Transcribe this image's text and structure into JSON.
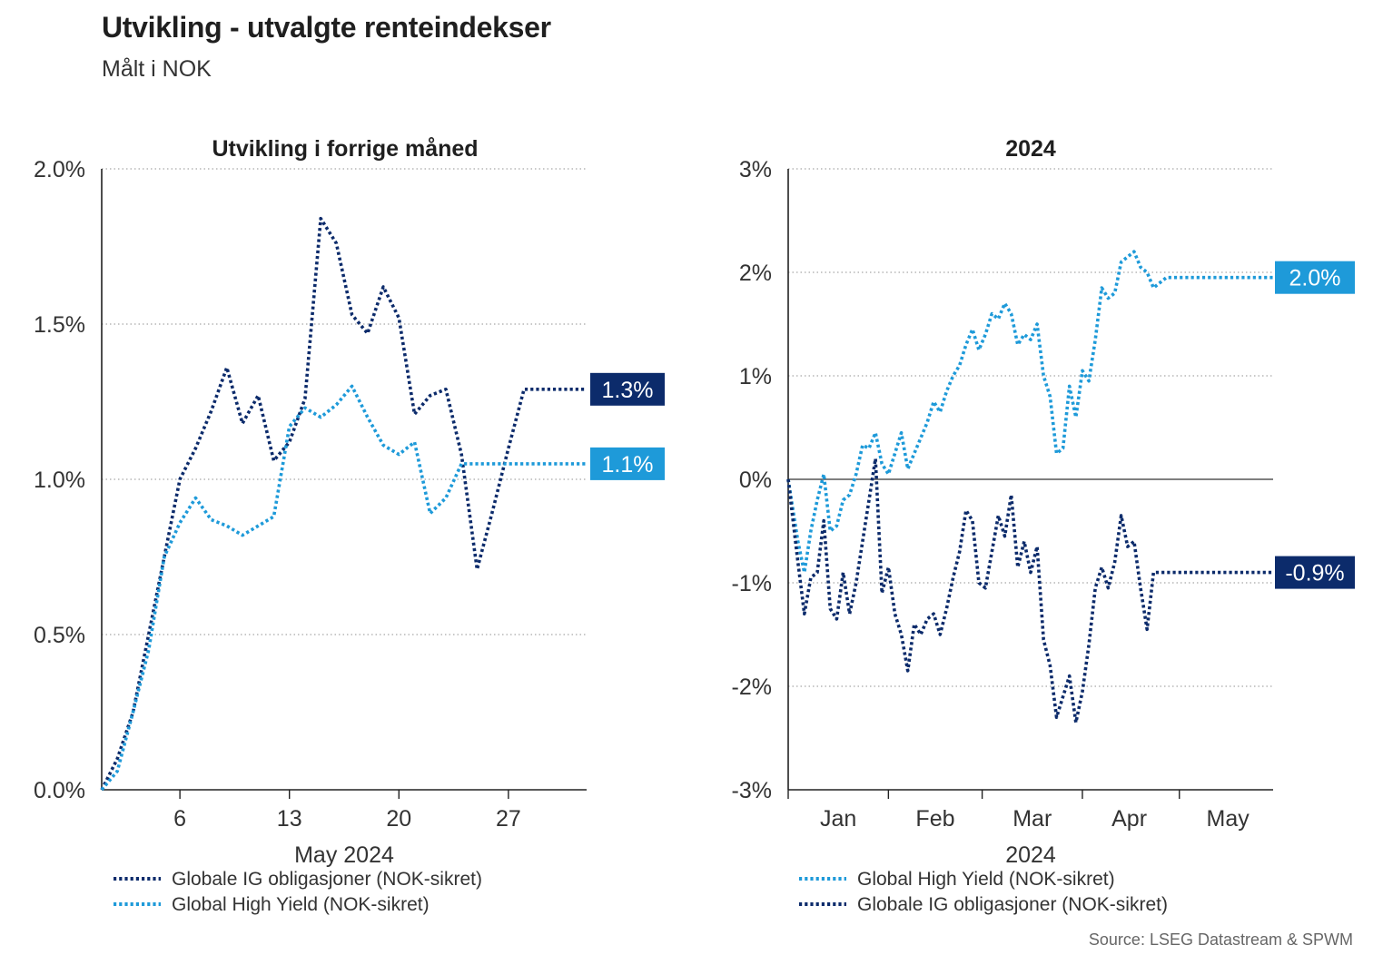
{
  "title": "Utvikling - utvalgte renteindekser",
  "subtitle": "Målt i NOK",
  "source": "Source: LSEG Datastream & SPWM",
  "colors": {
    "ig": "#0c2b6b",
    "hy": "#1e9ad9",
    "grid": "#a8a8a8",
    "axis": "#222222"
  },
  "chart_data": [
    {
      "type": "line",
      "title": "Utvikling i forrige måned",
      "xlabel": "May 2024",
      "ylabel": "",
      "xlim": [
        1,
        32
      ],
      "ylim": [
        0,
        2.0
      ],
      "yticks": [
        {
          "v": 0.0,
          "label": "0.0%"
        },
        {
          "v": 0.5,
          "label": "0.5%"
        },
        {
          "v": 1.0,
          "label": "1.0%"
        },
        {
          "v": 1.5,
          "label": "1.5%"
        },
        {
          "v": 2.0,
          "label": "2.0%"
        }
      ],
      "xticks": [
        {
          "v": 6,
          "label": "6"
        },
        {
          "v": 13,
          "label": "13"
        },
        {
          "v": 20,
          "label": "20"
        },
        {
          "v": 27,
          "label": "27"
        }
      ],
      "legend": [
        "Globale IG obligasjoner (NOK-sikret)",
        "Global High Yield (NOK-sikret)"
      ],
      "series": [
        {
          "name": "Globale IG obligasjoner (NOK-sikret)",
          "key": "ig",
          "end_label": "1.3%",
          "x": [
            1,
            2,
            3,
            4,
            5,
            6,
            7,
            8,
            9,
            10,
            11,
            12,
            13,
            14,
            15,
            16,
            17,
            18,
            19,
            20,
            21,
            22,
            23,
            24,
            25,
            26,
            27,
            28,
            29,
            30,
            31,
            32
          ],
          "values": [
            0.0,
            0.1,
            0.25,
            0.5,
            0.75,
            1.0,
            1.1,
            1.22,
            1.36,
            1.18,
            1.27,
            1.06,
            1.12,
            1.26,
            1.84,
            1.76,
            1.53,
            1.47,
            1.62,
            1.52,
            1.21,
            1.27,
            1.29,
            1.08,
            0.71,
            0.9,
            1.1,
            1.29,
            1.29,
            1.29,
            1.29,
            1.29
          ]
        },
        {
          "name": "Global High Yield (NOK-sikret)",
          "key": "hy",
          "end_label": "1.1%",
          "x": [
            1,
            2,
            3,
            4,
            5,
            6,
            7,
            8,
            9,
            10,
            11,
            12,
            13,
            14,
            15,
            16,
            17,
            18,
            19,
            20,
            21,
            22,
            23,
            24,
            25,
            26,
            27,
            28,
            29,
            30,
            31,
            32
          ],
          "values": [
            0.0,
            0.06,
            0.25,
            0.45,
            0.75,
            0.86,
            0.94,
            0.87,
            0.85,
            0.82,
            0.85,
            0.88,
            1.17,
            1.23,
            1.2,
            1.24,
            1.3,
            1.2,
            1.11,
            1.08,
            1.12,
            0.89,
            0.94,
            1.05,
            1.05,
            1.05,
            1.05,
            1.05,
            1.05,
            1.05,
            1.05,
            1.05
          ]
        }
      ]
    },
    {
      "type": "line",
      "title": "2024",
      "xlabel": "2024",
      "ylabel": "",
      "xlim": [
        0,
        150
      ],
      "ylim": [
        -3,
        3
      ],
      "yticks": [
        {
          "v": -3,
          "label": "-3%"
        },
        {
          "v": -2,
          "label": "-2%"
        },
        {
          "v": -1,
          "label": "-1%"
        },
        {
          "v": 0,
          "label": "0%"
        },
        {
          "v": 1,
          "label": "1%"
        },
        {
          "v": 2,
          "label": "2%"
        },
        {
          "v": 3,
          "label": "3%"
        }
      ],
      "month_labels": [
        {
          "v": 15.5,
          "label": "Jan"
        },
        {
          "v": 45.5,
          "label": "Feb"
        },
        {
          "v": 75.5,
          "label": "Mar"
        },
        {
          "v": 105.5,
          "label": "Apr"
        },
        {
          "v": 136,
          "label": "May"
        }
      ],
      "month_boundaries": [
        0,
        31,
        60,
        91,
        121
      ],
      "legend": [
        "Global High Yield (NOK-sikret)",
        "Globale IG obligasjoner (NOK-sikret)"
      ],
      "series": [
        {
          "name": "Global High Yield (NOK-sikret)",
          "key": "hy",
          "end_label": "2.0%",
          "x": [
            0,
            3,
            5,
            7,
            9,
            11,
            13,
            15,
            17,
            19,
            21,
            23,
            25,
            27,
            29,
            31,
            33,
            35,
            37,
            39,
            41,
            43,
            45,
            47,
            49,
            51,
            53,
            55,
            57,
            59,
            61,
            63,
            65,
            67,
            69,
            71,
            73,
            75,
            77,
            79,
            81,
            83,
            85,
            87,
            89,
            91,
            93,
            95,
            97,
            99,
            101,
            103,
            105,
            107,
            109,
            111,
            113,
            115,
            117,
            119,
            121,
            123,
            125,
            127,
            129,
            131,
            133,
            135,
            137,
            139,
            141,
            143,
            145,
            147,
            149,
            150
          ],
          "values": [
            0.0,
            -0.6,
            -0.9,
            -0.5,
            -0.2,
            0.05,
            -0.5,
            -0.45,
            -0.2,
            -0.15,
            0.05,
            0.33,
            0.3,
            0.45,
            0.15,
            0.05,
            0.25,
            0.45,
            0.1,
            0.25,
            0.4,
            0.55,
            0.75,
            0.65,
            0.85,
            1.0,
            1.1,
            1.3,
            1.45,
            1.25,
            1.4,
            1.6,
            1.55,
            1.7,
            1.6,
            1.3,
            1.4,
            1.35,
            1.5,
            1.0,
            0.8,
            0.25,
            0.3,
            0.9,
            0.6,
            1.05,
            0.95,
            1.35,
            1.85,
            1.75,
            1.8,
            2.1,
            2.15,
            2.2,
            2.05,
            2.0,
            1.85,
            1.9,
            1.95,
            1.95,
            1.95,
            1.95,
            1.95,
            1.95,
            1.95,
            1.95,
            1.95,
            1.95,
            1.95,
            1.95,
            1.95,
            1.95,
            1.95,
            1.95,
            1.95,
            1.95
          ]
        },
        {
          "name": "Globale IG obligasjoner (NOK-sikret)",
          "key": "ig",
          "end_label": "-0.9%",
          "x": [
            0,
            3,
            5,
            7,
            9,
            11,
            13,
            15,
            17,
            19,
            21,
            23,
            25,
            27,
            29,
            31,
            33,
            35,
            37,
            39,
            41,
            43,
            45,
            47,
            49,
            51,
            53,
            55,
            57,
            59,
            61,
            63,
            65,
            67,
            69,
            71,
            73,
            75,
            77,
            79,
            81,
            83,
            85,
            87,
            89,
            91,
            93,
            95,
            97,
            99,
            101,
            103,
            105,
            107,
            109,
            111,
            113,
            115,
            117,
            119,
            121,
            123,
            125,
            127,
            129,
            131,
            133,
            135,
            137,
            139,
            141,
            143,
            145,
            147,
            149,
            150
          ],
          "values": [
            0.0,
            -0.8,
            -1.3,
            -0.95,
            -0.9,
            -0.4,
            -1.25,
            -1.35,
            -0.9,
            -1.3,
            -1.0,
            -0.6,
            -0.2,
            0.2,
            -1.1,
            -0.85,
            -1.3,
            -1.5,
            -1.85,
            -1.4,
            -1.5,
            -1.35,
            -1.3,
            -1.5,
            -1.25,
            -0.95,
            -0.7,
            -0.3,
            -0.4,
            -1.0,
            -1.05,
            -0.7,
            -0.35,
            -0.55,
            -0.15,
            -0.85,
            -0.6,
            -0.9,
            -0.65,
            -1.55,
            -1.8,
            -2.3,
            -2.1,
            -1.9,
            -2.35,
            -2.05,
            -1.6,
            -1.05,
            -0.85,
            -1.05,
            -0.8,
            -0.35,
            -0.65,
            -0.6,
            -1.05,
            -1.45,
            -0.9,
            -0.9,
            -0.9,
            -0.9,
            -0.9,
            -0.9,
            -0.9,
            -0.9,
            -0.9,
            -0.9,
            -0.9,
            -0.9,
            -0.9,
            -0.9,
            -0.9,
            -0.9,
            -0.9,
            -0.9,
            -0.9,
            -0.9
          ]
        }
      ]
    }
  ]
}
